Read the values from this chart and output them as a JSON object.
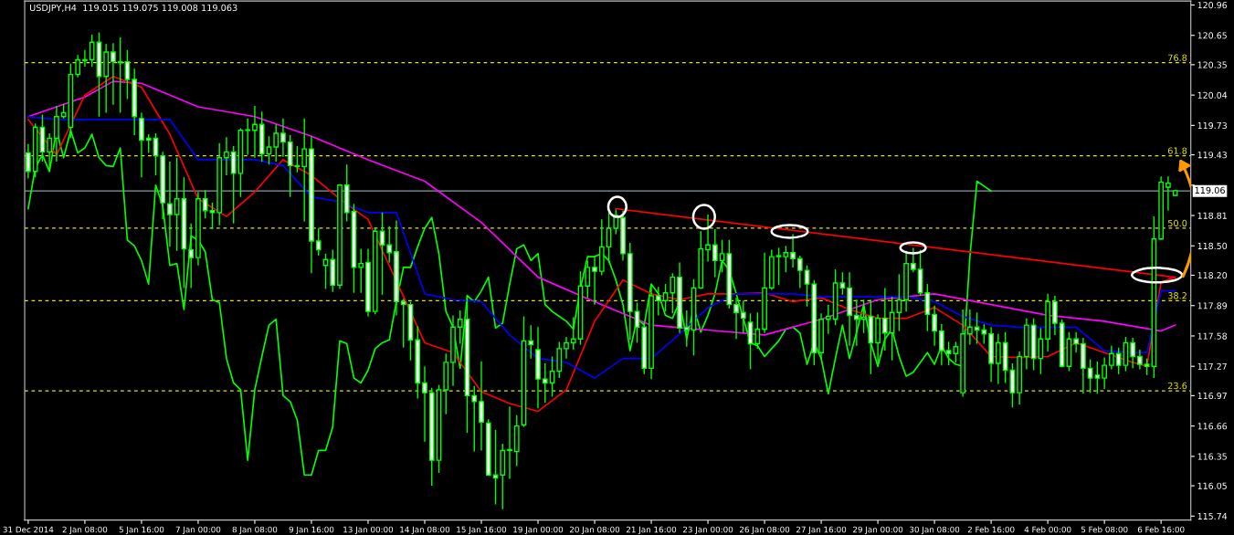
{
  "chart_data": {
    "type": "candlestick",
    "title": "USDJPY,H4  119.015 119.075 119.008 119.063",
    "categories": [
      "31 Dec 2014",
      null,
      null,
      null,
      null,
      null,
      null,
      null,
      "2 Jan 08:00",
      null,
      null,
      null,
      null,
      null,
      null,
      null,
      "5 Jan 16:00",
      null,
      null,
      null,
      null,
      null,
      null,
      null,
      "7 Jan 00:00",
      null,
      null,
      null,
      null,
      null,
      null,
      null,
      "8 Jan 08:00",
      null,
      null,
      null,
      null,
      null,
      null,
      null,
      "9 Jan 16:00",
      null,
      null,
      null,
      null,
      null,
      null,
      null,
      "13 Jan 00:00",
      null,
      null,
      null,
      null,
      null,
      null,
      null,
      "14 Jan 08:00",
      null,
      null,
      null,
      null,
      null,
      null,
      null,
      "15 Jan 16:00",
      null,
      null,
      null,
      null,
      null,
      null,
      null,
      "19 Jan 00:00",
      null,
      null,
      null,
      null,
      null,
      null,
      null,
      "20 Jan 08:00",
      null,
      null,
      null,
      null,
      null,
      null,
      null,
      "21 Jan 16:00",
      null,
      null,
      null,
      null,
      null,
      null,
      null,
      "23 Jan 00:00",
      null,
      null,
      null,
      null,
      null,
      null,
      null,
      "26 Jan 08:00",
      null,
      null,
      null,
      null,
      null,
      null,
      null,
      "27 Jan 16:00",
      null,
      null,
      null,
      null,
      null,
      null,
      null,
      "29 Jan 00:00",
      null,
      null,
      null,
      null,
      null,
      null,
      null,
      "30 Jan 08:00",
      null,
      null,
      null,
      null,
      null,
      null,
      null,
      "2 Feb 16:00",
      null,
      null,
      null,
      null,
      null,
      null,
      null,
      "4 Feb 00:00",
      null,
      null,
      null,
      null,
      null,
      null,
      null,
      "5 Feb 08:00",
      null,
      null,
      null,
      null,
      null,
      null,
      null,
      "6 Feb 16:00",
      null,
      null
    ],
    "ylim": [
      115.7,
      121.0
    ],
    "yticks": [
      120.96,
      120.65,
      120.35,
      120.04,
      119.73,
      119.43,
      {
        "value": 119.12,
        "label": null
      },
      118.81,
      {
        "value": 118.5,
        "label": "118.50"
      },
      {
        "value": 118.2,
        "label": "118.20"
      },
      117.89,
      117.58,
      117.27,
      116.97,
      116.66,
      116.35,
      116.05,
      115.74
    ],
    "series": [
      {
        "type": "line",
        "color": "#00ff00",
        "values": [
          118.88,
          119.3,
          119.43,
          119.26,
          119.68,
          119.4,
          119.68,
          119.45,
          119.5,
          119.64,
          119.4,
          119.32,
          119.31,
          119.5,
          118.56,
          118.5,
          118.35,
          118.11,
          119.12,
          118.91,
          118.3,
          118.32,
          117.85,
          118.6,
          118.56,
          118.44,
          117.95,
          117.92,
          117.35,
          117.1,
          117.03,
          116.31,
          117.03,
          117.37,
          117.69,
          117.75,
          116.97,
          116.91,
          116.72,
          116.16,
          116.16,
          116.41,
          116.41,
          116.65,
          117.53,
          117.5,
          117.15,
          117.1,
          117.23,
          117.45,
          117.51,
          117.54,
          117.93,
          118.28,
          118.28,
          118.49,
          118.68,
          118.79,
          118.42,
          117.83,
          117.67,
          117.25,
          117.99,
          117.93,
          118.04,
          118.18,
          117.66,
          117.71,
          118.11,
          118.47,
          118.51,
          118.35,
          118.42,
          117.9,
          117.83,
          117.78,
          117.73,
          117.65,
          118.07,
          118.39,
          118.39,
          118.42,
          118.35,
          118.15,
          117.9,
          117.43,
          117.76,
          117.69,
          118.11,
          118.01,
          117.79,
          117.76,
          117.93,
          117.55,
          117.87,
          117.62,
          117.79,
          118.01,
          118.35,
          118.25,
          118.01,
          117.76,
          117.51,
          117.48,
          117.37,
          117.45,
          117.53,
          117.65,
          117.67,
          117.61,
          117.29,
          117.51,
          117.35,
          116.99,
          117.35,
          117.69,
          117.35,
          117.62,
          117.9,
          117.51,
          117.27,
          117.55,
          117.65,
          117.37,
          117.17,
          117.21,
          117.31,
          117.41,
          117.29,
          117.48,
          117.35,
          117.29,
          117.27,
          118.39,
          119.16,
          119.11,
          119.06,
          null,
          null,
          null,
          null,
          null,
          null,
          null,
          null,
          null,
          null,
          null,
          null,
          null,
          null,
          null,
          null,
          null,
          null,
          null,
          null,
          null,
          null,
          null,
          null,
          null,
          null
        ]
      },
      {
        "type": "line",
        "color": "#ff00ff",
        "values": [
          119.82,
          null,
          null,
          null,
          null,
          null,
          null,
          null,
          120.02,
          null,
          null,
          null,
          120.18,
          null,
          null,
          null,
          120.16,
          null,
          null,
          null,
          null,
          null,
          null,
          null,
          119.92,
          null,
          null,
          null,
          null,
          null,
          null,
          null,
          119.82,
          null,
          null,
          null,
          null,
          null,
          null,
          null,
          119.62,
          null,
          null,
          null,
          null,
          null,
          null,
          null,
          119.38,
          null,
          null,
          null,
          null,
          null,
          null,
          null,
          119.16,
          null,
          null,
          null,
          null,
          null,
          null,
          null,
          118.74,
          null,
          null,
          null,
          null,
          null,
          null,
          null,
          118.18,
          null,
          null,
          null,
          null,
          null,
          null,
          null,
          117.93,
          null,
          null,
          null,
          null,
          null,
          null,
          null,
          117.69,
          null,
          null,
          null,
          null,
          null,
          null,
          null,
          117.64,
          null,
          null,
          null,
          null,
          null,
          null,
          null,
          117.59,
          null,
          null,
          null,
          null,
          null,
          null,
          null,
          117.75,
          null,
          null,
          null,
          null,
          null,
          null,
          null,
          117.95,
          null,
          null,
          null,
          null,
          null,
          null,
          null,
          118.01,
          null,
          null,
          null,
          null,
          null,
          null,
          null,
          117.9,
          null,
          null,
          null,
          null,
          null,
          null,
          null,
          117.79,
          null,
          null,
          null,
          null,
          null,
          null,
          null,
          117.73,
          null,
          null,
          null,
          null,
          null,
          null,
          null,
          117.63,
          null,
          117.69
        ]
      },
      {
        "type": "line",
        "color": "#ff0000",
        "values": [
          119.79,
          null,
          null,
          null,
          119.43,
          null,
          null,
          null,
          120.04,
          null,
          null,
          null,
          120.23,
          null,
          null,
          null,
          120.12,
          null,
          null,
          null,
          119.64,
          null,
          null,
          null,
          118.98,
          null,
          null,
          null,
          118.8,
          null,
          null,
          null,
          119.05,
          null,
          null,
          null,
          119.38,
          null,
          null,
          null,
          119.22,
          null,
          null,
          null,
          118.98,
          null,
          null,
          null,
          118.77,
          null,
          null,
          null,
          null,
          null,
          null,
          null,
          117.51,
          null,
          null,
          null,
          117.41,
          null,
          null,
          null,
          117.01,
          null,
          null,
          null,
          116.89,
          null,
          null,
          null,
          116.81,
          null,
          null,
          null,
          117.03,
          null,
          null,
          null,
          117.73,
          null,
          null,
          null,
          118.15,
          null,
          null,
          null,
          118.01,
          null,
          null,
          null,
          117.95,
          null,
          null,
          null,
          118.01,
          null,
          null,
          null,
          118.01,
          null,
          null,
          null,
          118.02,
          null,
          null,
          null,
          117.93,
          null,
          null,
          null,
          117.97,
          null,
          null,
          null,
          117.85,
          null,
          null,
          null,
          117.76,
          null,
          null,
          null,
          117.76,
          null,
          null,
          null,
          117.87,
          null,
          null,
          null,
          117.69,
          null,
          null,
          null,
          117.37,
          null,
          null,
          null,
          117.36,
          null,
          null,
          null,
          117.37,
          null,
          null,
          null,
          117.51,
          null,
          null,
          null,
          117.41,
          null,
          null,
          null,
          117.31,
          null,
          117.27,
          null,
          118.13,
          null,
          118.18
        ]
      },
      {
        "type": "line",
        "color": "#0000ff",
        "values": [
          119.82,
          null,
          null,
          null,
          119.79,
          null,
          null,
          null,
          119.79,
          null,
          null,
          null,
          119.79,
          null,
          null,
          null,
          119.79,
          null,
          null,
          null,
          119.79,
          null,
          null,
          null,
          119.38,
          null,
          null,
          null,
          119.38,
          null,
          null,
          null,
          119.38,
          null,
          null,
          null,
          119.32,
          null,
          null,
          null,
          119.0,
          null,
          null,
          null,
          118.95,
          null,
          null,
          null,
          118.84,
          null,
          null,
          null,
          118.84,
          null,
          null,
          null,
          118.01,
          null,
          null,
          null,
          117.95,
          null,
          null,
          null,
          117.93,
          null,
          null,
          null,
          117.59,
          null,
          null,
          null,
          117.35,
          null,
          null,
          null,
          117.31,
          null,
          null,
          null,
          117.15,
          null,
          null,
          null,
          117.35,
          null,
          null,
          null,
          117.35,
          null,
          null,
          null,
          117.6,
          null,
          null,
          null,
          117.87,
          null,
          null,
          null,
          118.01,
          null,
          null,
          null,
          118.01,
          null,
          null,
          null,
          118.01,
          null,
          null,
          null,
          117.98,
          null,
          null,
          null,
          117.98,
          null,
          null,
          null,
          117.98,
          null,
          null,
          null,
          117.98,
          null,
          null,
          null,
          117.93,
          null,
          null,
          null,
          117.78,
          null,
          null,
          null,
          117.69,
          null,
          null,
          null,
          117.67,
          null,
          null,
          null,
          117.67,
          null,
          null,
          null,
          117.67,
          null,
          null,
          null,
          117.43,
          null,
          null,
          null,
          117.41,
          null,
          117.41,
          null,
          118.04,
          null,
          118.04
        ]
      },
      {
        "type": "line",
        "color": "#ff0000",
        "values": [
          null,
          null,
          null,
          null,
          null,
          null,
          null,
          null,
          null,
          null,
          null,
          null,
          null,
          null,
          null,
          null,
          null,
          null,
          null,
          null,
          null,
          null,
          null,
          null,
          null,
          null,
          null,
          null,
          null,
          null,
          null,
          null,
          null,
          null,
          null,
          null,
          null,
          null,
          null,
          null,
          null,
          null,
          null,
          null,
          null,
          null,
          null,
          null,
          null,
          null,
          null,
          null,
          null,
          null,
          null,
          null,
          null,
          null,
          null,
          null,
          null,
          null,
          null,
          null,
          null,
          null,
          null,
          null,
          null,
          null,
          null,
          null,
          null,
          null,
          null,
          null,
          null,
          null,
          null,
          null,
          null,
          null,
          null,
          118.88,
          null,
          null,
          null,
          null,
          null,
          null,
          null,
          null,
          null,
          null,
          null,
          null,
          null,
          null,
          null,
          null,
          null,
          null,
          null,
          null,
          null,
          null,
          null,
          null,
          null,
          null,
          null,
          null,
          null,
          null,
          null,
          null,
          null,
          null,
          null,
          null,
          null,
          null,
          null,
          null,
          null,
          null,
          null,
          null,
          null,
          null,
          null,
          null,
          null,
          null,
          null,
          null,
          null,
          null,
          null,
          null,
          null,
          null,
          null,
          null,
          null,
          null,
          null,
          null,
          null,
          null,
          null,
          null,
          null,
          null,
          null,
          null,
          null,
          null,
          null,
          null,
          null,
          null,
          118.18
        ]
      },
      {
        "color": "#00ff00",
        "ohlc": [
          [
            119.45,
            119.54,
            119.19,
            119.26
          ],
          [
            119.26,
            119.75,
            119.2,
            119.71
          ],
          [
            119.71,
            119.84,
            119.36,
            119.46
          ],
          [
            119.46,
            119.65,
            119.26,
            119.6
          ],
          [
            119.6,
            119.93,
            119.36,
            119.82
          ],
          [
            119.82,
            119.95,
            119.8,
            119.86
          ],
          [
            119.71,
            120.36,
            119.6,
            120.25
          ],
          [
            120.25,
            120.45,
            120.22,
            120.4
          ],
          [
            120.4,
            120.5,
            120.33,
            120.39
          ],
          [
            120.4,
            120.66,
            120.33,
            120.58
          ],
          [
            120.58,
            120.68,
            119.82,
            120.23
          ],
          [
            120.23,
            120.56,
            119.86,
            120.48
          ],
          [
            120.48,
            120.57,
            119.94,
            120.38
          ],
          [
            120.38,
            120.63,
            119.86,
            120.37
          ],
          [
            120.38,
            120.5,
            120.0,
            120.2
          ],
          [
            120.2,
            120.31,
            119.63,
            119.82
          ],
          [
            119.8,
            119.86,
            119.2,
            119.58
          ],
          [
            119.6,
            119.64,
            119.45,
            119.58
          ],
          [
            119.6,
            119.65,
            119.22,
            119.42
          ],
          [
            119.42,
            119.46,
            118.77,
            118.94
          ],
          [
            118.93,
            119.36,
            118.49,
            118.82
          ],
          [
            118.82,
            119.4,
            118.45,
            118.98
          ],
          [
            118.98,
            119.2,
            118.07,
            118.47
          ],
          [
            118.46,
            118.73,
            118.07,
            118.38
          ],
          [
            118.38,
            119.05,
            118.3,
            118.98
          ],
          [
            118.98,
            119.07,
            118.78,
            118.86
          ],
          [
            118.86,
            118.94,
            118.67,
            118.84
          ],
          [
            118.84,
            119.55,
            118.71,
            119.4
          ],
          [
            119.4,
            119.61,
            119.22,
            119.46
          ],
          [
            119.46,
            119.52,
            118.73,
            119.24
          ],
          [
            119.24,
            119.7,
            119.0,
            119.68
          ],
          [
            119.68,
            119.8,
            119.43,
            119.68
          ],
          [
            119.68,
            119.93,
            119.4,
            119.74
          ],
          [
            119.74,
            119.87,
            119.36,
            119.44
          ],
          [
            119.44,
            119.62,
            119.33,
            119.51
          ],
          [
            119.51,
            119.74,
            119.36,
            119.65
          ],
          [
            119.65,
            119.8,
            119.41,
            119.56
          ],
          [
            119.56,
            119.63,
            119.0,
            119.32
          ],
          [
            119.32,
            119.52,
            119.25,
            119.31
          ],
          [
            119.31,
            119.8,
            118.75,
            119.49
          ],
          [
            119.49,
            119.62,
            118.22,
            118.55
          ],
          [
            118.55,
            118.68,
            118.4,
            118.46
          ],
          [
            118.3,
            118.42,
            118.06,
            118.36
          ],
          [
            118.36,
            118.46,
            118.03,
            118.1
          ],
          [
            118.1,
            119.13,
            118.06,
            119.12
          ],
          [
            119.12,
            119.33,
            118.75,
            118.84
          ],
          [
            118.85,
            118.93,
            118.02,
            118.28
          ],
          [
            118.28,
            118.47,
            118.02,
            118.32
          ],
          [
            118.33,
            118.47,
            117.78,
            117.83
          ],
          [
            117.83,
            118.69,
            117.8,
            118.65
          ],
          [
            118.65,
            118.84,
            118.0,
            118.51
          ],
          [
            118.51,
            118.7,
            118.33,
            118.43
          ],
          [
            118.44,
            118.76,
            117.79,
            117.93
          ],
          [
            117.93,
            117.96,
            117.46,
            117.9
          ],
          [
            117.9,
            117.93,
            117.33,
            117.54
          ],
          [
            117.54,
            117.68,
            116.94,
            117.1
          ],
          [
            117.1,
            117.27,
            116.5,
            117.0
          ],
          [
            117.0,
            117.05,
            116.05,
            116.31
          ],
          [
            116.31,
            117.08,
            116.18,
            117.03
          ],
          [
            117.03,
            117.4,
            116.78,
            117.31
          ],
          [
            117.31,
            117.79,
            117.07,
            117.67
          ],
          [
            117.67,
            117.84,
            117.5,
            117.75
          ],
          [
            117.75,
            118.0,
            116.59,
            116.97
          ],
          [
            116.97,
            117.07,
            116.4,
            116.91
          ],
          [
            116.91,
            117.32,
            116.41,
            116.7
          ],
          [
            116.69,
            116.73,
            116.15,
            116.16
          ],
          [
            116.16,
            116.62,
            115.86,
            116.13
          ],
          [
            116.16,
            116.48,
            115.81,
            116.41
          ],
          [
            116.41,
            116.86,
            116.12,
            116.42
          ],
          [
            116.4,
            116.77,
            116.25,
            116.66
          ],
          [
            116.67,
            117.78,
            116.65,
            117.53
          ],
          [
            117.53,
            117.69,
            117.35,
            117.49
          ],
          [
            117.44,
            117.67,
            116.84,
            117.14
          ],
          [
            117.14,
            117.3,
            116.9,
            117.1
          ],
          [
            117.1,
            117.37,
            116.96,
            117.22
          ],
          [
            117.22,
            117.52,
            117.15,
            117.45
          ],
          [
            117.45,
            117.57,
            117.35,
            117.51
          ],
          [
            117.51,
            117.77,
            117.44,
            117.55
          ],
          [
            117.55,
            118.24,
            117.49,
            118.09
          ],
          [
            118.09,
            118.35,
            117.97,
            118.28
          ],
          [
            118.28,
            118.4,
            117.9,
            118.24
          ],
          [
            118.24,
            118.77,
            118.2,
            118.49
          ],
          [
            118.49,
            118.84,
            118.33,
            118.68
          ],
          [
            118.68,
            118.87,
            118.62,
            118.81
          ],
          [
            118.79,
            118.86,
            118.35,
            118.42
          ],
          [
            118.42,
            118.53,
            117.54,
            117.83
          ],
          [
            117.83,
            117.92,
            117.51,
            117.67
          ],
          [
            117.67,
            117.72,
            117.19,
            117.25
          ],
          [
            117.25,
            118.11,
            117.14,
            117.99
          ],
          [
            117.99,
            118.08,
            117.79,
            117.94
          ],
          [
            117.94,
            118.11,
            117.83,
            118.02
          ],
          [
            118.02,
            118.22,
            117.81,
            118.18
          ],
          [
            118.18,
            118.33,
            117.61,
            117.66
          ],
          [
            117.67,
            117.84,
            117.47,
            117.64
          ],
          [
            117.64,
            118.16,
            117.38,
            118.07
          ],
          [
            118.07,
            118.65,
            118.06,
            118.47
          ],
          [
            118.46,
            118.82,
            118.34,
            118.51
          ],
          [
            118.51,
            118.67,
            118.18,
            118.35
          ],
          [
            118.35,
            118.56,
            118.23,
            118.42
          ],
          [
            118.42,
            118.56,
            117.86,
            117.9
          ],
          [
            117.9,
            117.97,
            117.55,
            117.82
          ],
          [
            117.82,
            117.94,
            117.61,
            117.76
          ],
          [
            117.72,
            117.81,
            117.24,
            117.5
          ],
          [
            117.5,
            117.82,
            117.45,
            117.65
          ],
          [
            117.65,
            118.43,
            117.61,
            118.07
          ],
          [
            118.07,
            118.46,
            118.05,
            118.39
          ],
          [
            118.39,
            118.48,
            118.1,
            118.4
          ],
          [
            118.39,
            118.5,
            118.23,
            118.43
          ],
          [
            118.43,
            118.62,
            118.28,
            118.37
          ],
          [
            118.37,
            118.4,
            118.07,
            118.25
          ],
          [
            118.25,
            118.3,
            117.88,
            118.11
          ],
          [
            118.11,
            118.15,
            117.28,
            117.41
          ],
          [
            117.41,
            117.81,
            117.34,
            117.75
          ],
          [
            117.75,
            117.9,
            117.6,
            117.78
          ],
          [
            117.75,
            118.26,
            117.69,
            118.12
          ],
          [
            118.12,
            118.23,
            118.0,
            118.07
          ],
          [
            118.07,
            118.23,
            117.48,
            117.79
          ],
          [
            117.79,
            117.95,
            117.48,
            117.75
          ],
          [
            117.75,
            117.95,
            117.61,
            117.77
          ],
          [
            117.78,
            117.95,
            117.19,
            117.51
          ],
          [
            117.51,
            117.8,
            117.27,
            117.76
          ],
          [
            117.76,
            118.07,
            117.43,
            117.61
          ],
          [
            117.61,
            117.98,
            117.33,
            117.82
          ],
          [
            117.82,
            118.21,
            117.63,
            117.95
          ],
          [
            117.95,
            118.45,
            117.83,
            118.32
          ],
          [
            118.32,
            118.48,
            118.23,
            118.26
          ],
          [
            118.26,
            118.46,
            117.99,
            118.02
          ],
          [
            118.02,
            118.11,
            117.63,
            117.8
          ],
          [
            117.8,
            117.89,
            117.48,
            117.63
          ],
          [
            117.63,
            117.7,
            117.28,
            117.43
          ],
          [
            117.43,
            117.52,
            117.28,
            117.4
          ],
          [
            117.4,
            117.52,
            117.31,
            117.47
          ],
          [
            117.0,
            117.85,
            116.96,
            117.6
          ],
          [
            117.6,
            117.85,
            117.49,
            117.67
          ],
          [
            117.67,
            117.82,
            117.5,
            117.64
          ],
          [
            117.64,
            117.7,
            117.5,
            117.6
          ],
          [
            117.6,
            117.67,
            117.11,
            117.3
          ],
          [
            117.3,
            117.6,
            117.09,
            117.51
          ],
          [
            117.51,
            117.62,
            117.1,
            117.23
          ],
          [
            117.23,
            117.3,
            116.85,
            117.0
          ],
          [
            117.0,
            117.42,
            116.88,
            117.37
          ],
          [
            117.37,
            117.76,
            117.24,
            117.69
          ],
          [
            117.69,
            117.76,
            117.23,
            117.35
          ],
          [
            117.35,
            117.66,
            117.19,
            117.55
          ],
          [
            117.55,
            118.01,
            117.42,
            117.93
          ],
          [
            117.93,
            117.99,
            117.59,
            117.71
          ],
          [
            117.71,
            117.75,
            117.26,
            117.27
          ],
          [
            117.27,
            117.62,
            117.22,
            117.55
          ],
          [
            117.55,
            117.62,
            117.41,
            117.5
          ],
          [
            117.5,
            117.56,
            116.99,
            117.25
          ],
          [
            117.25,
            117.34,
            117.0,
            117.15
          ],
          [
            117.18,
            117.32,
            116.99,
            117.15
          ],
          [
            117.15,
            117.36,
            117.04,
            117.28
          ],
          [
            117.28,
            117.48,
            117.24,
            117.4
          ],
          [
            117.4,
            117.46,
            117.19,
            117.28
          ],
          [
            117.28,
            117.57,
            117.22,
            117.51
          ],
          [
            117.51,
            117.56,
            117.25,
            117.37
          ],
          [
            117.37,
            117.44,
            117.24,
            117.29
          ],
          [
            117.29,
            117.35,
            117.18,
            117.27
          ],
          [
            117.27,
            118.8,
            117.15,
            118.57
          ],
          [
            118.57,
            119.21,
            118.56,
            119.15
          ],
          [
            119.1,
            119.21,
            118.86,
            119.14
          ],
          [
            119.015,
            119.075,
            119.008,
            119.063
          ]
        ]
      }
    ],
    "ref_lines": [
      {
        "axis": "y",
        "value": 120.37,
        "color": "#e6e600",
        "line_style": "dashed"
      },
      {
        "axis": "y",
        "value": 119.42,
        "color": "#e6e600",
        "line_style": "dashed"
      },
      {
        "axis": "y",
        "value": 118.68,
        "color": "#e6e600",
        "line_style": "dashed"
      },
      {
        "axis": "y",
        "value": 117.94,
        "color": "#e6e600",
        "line_style": "dashed"
      },
      {
        "axis": "y",
        "value": 117.02,
        "color": "#e6e600",
        "line_style": "dashed"
      },
      {
        "axis": "y",
        "value": 119.06,
        "label": "119.06",
        "color": "#8a9aaa",
        "line_style": "solid"
      }
    ],
    "annotations": [
      {
        "text": "76.8",
        "y": 120.37
      },
      {
        "text": "61.8",
        "y": 119.42
      },
      {
        "text": "50.0",
        "y": 118.68
      },
      {
        "text": "38.2",
        "y": 117.94
      },
      {
        "text": "23.6",
        "y": 117.02
      }
    ]
  }
}
